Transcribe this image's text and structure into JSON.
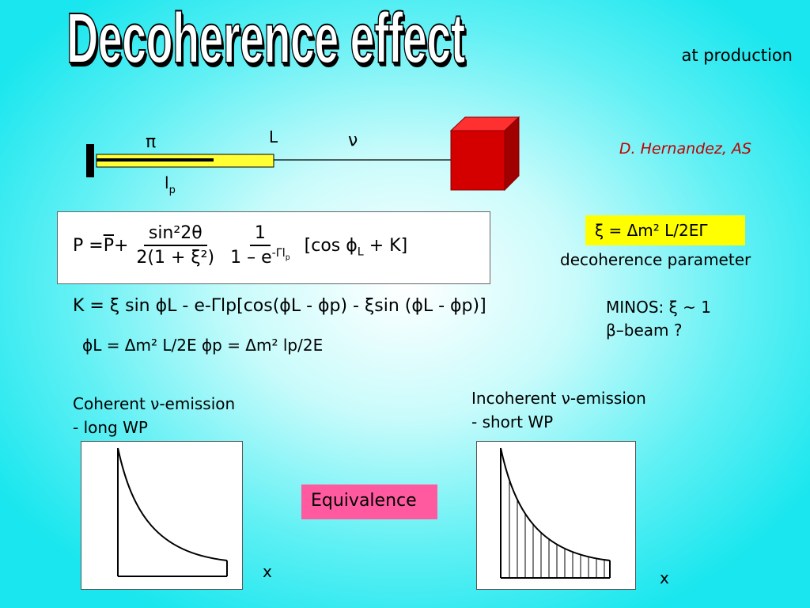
{
  "title": "Decoherence effect",
  "subtitle": "at production",
  "author": "D. Hernandez, AS",
  "setup_labels": {
    "pion": "π",
    "decay_length": "L",
    "neutrino": "ν",
    "pipe_length_main": "l",
    "pipe_length_sub": "p"
  },
  "formula_main": {
    "lhs": "P = ",
    "pbar": "P",
    "plus": " + ",
    "frac1_num": "sin²2θ",
    "frac1_den": "2(1 + ξ²)",
    "frac2_num": "1",
    "frac2_den": "1 – e",
    "frac2_exp": "-Γl",
    "frac2_exp_sub": "p",
    "bracket": "[cos ϕ",
    "bracket_sub": "L",
    "bracket_tail": " +  K]"
  },
  "xi_definition": "ξ = Δm² L/2EΓ",
  "xi_caption": "decoherence parameter",
  "formula_k": "K = ξ sin ϕL - e-Γlp[cos(ϕL - ϕp) - ξsin (ϕL - ϕp)]",
  "formula_phases": "ϕL = Δm² L/2E    ϕp = Δm² lp/2E",
  "minos_line1": "MINOS:  ξ ~ 1",
  "minos_line2": "β–beam ?",
  "coherent_line1": "Coherent ν-emission",
  "coherent_line2": "- long WP",
  "incoherent_line1": "Incoherent ν-emission",
  "incoherent_line2": "- short WP",
  "equivalence": "Equivalence",
  "x_axis_label": "x",
  "colors": {
    "title_fill": "#ffffff",
    "author_text": "#c00000",
    "decay_pipe": "#ffff33",
    "target_block": "#d40000",
    "xi_box": "#ffff00",
    "equivalence_box": "#ff5aa0"
  }
}
